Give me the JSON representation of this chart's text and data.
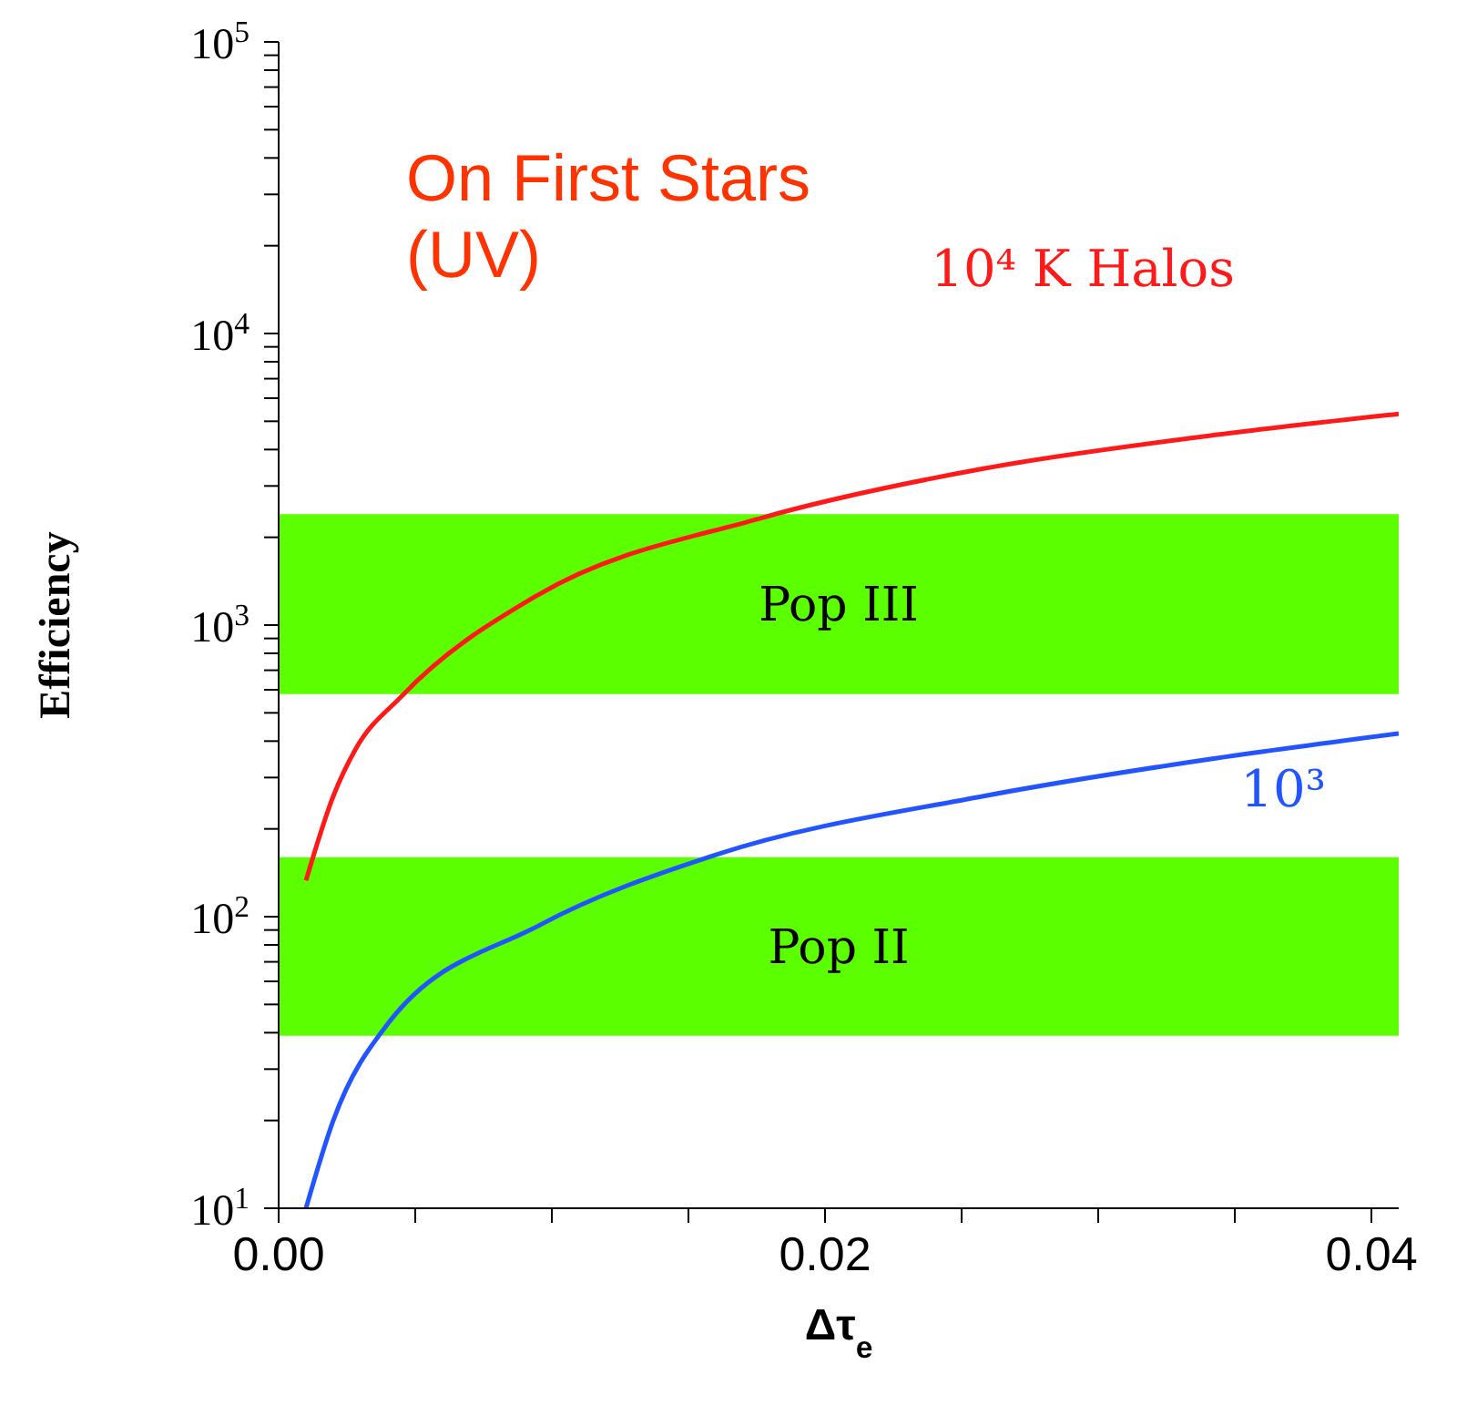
{
  "chart_data": {
    "type": "line",
    "xlabel": "Δτ$_{e}$",
    "ylabel": "Efficiency",
    "log": "y",
    "marker": "none",
    "line_style": "solid",
    "xlim": [
      0,
      0.041
    ],
    "xticks": [
      {
        "value": 0,
        "label": "0.00"
      },
      {
        "value": 0.005,
        "label": null
      },
      {
        "value": 0.01,
        "label": null
      },
      {
        "value": 0.015,
        "label": null
      },
      {
        "value": 0.02,
        "label": "0.02"
      },
      {
        "value": 0.025,
        "label": null
      },
      {
        "value": 0.03,
        "label": null
      },
      {
        "value": 0.035,
        "label": null
      },
      {
        "value": 0.04,
        "label": "0.04"
      }
    ],
    "ylim": [
      10,
      100000
    ],
    "yticks": [
      {
        "value": 10,
        "label": "10$^{1}$"
      },
      {
        "value": 20,
        "label": null
      },
      {
        "value": 30,
        "label": null
      },
      {
        "value": 40,
        "label": null
      },
      {
        "value": 50,
        "label": null
      },
      {
        "value": 60,
        "label": null
      },
      {
        "value": 70,
        "label": null
      },
      {
        "value": 80,
        "label": null
      },
      {
        "value": 90,
        "label": null
      },
      {
        "value": 100,
        "label": "10$^{2}$"
      },
      {
        "value": 200,
        "label": null
      },
      {
        "value": 300,
        "label": null
      },
      {
        "value": 400,
        "label": null
      },
      {
        "value": 500,
        "label": null
      },
      {
        "value": 600,
        "label": null
      },
      {
        "value": 700,
        "label": null
      },
      {
        "value": 800,
        "label": null
      },
      {
        "value": 900,
        "label": null
      },
      {
        "value": 1000,
        "label": "10$^{3}$"
      },
      {
        "value": 2000,
        "label": null
      },
      {
        "value": 3000,
        "label": null
      },
      {
        "value": 4000,
        "label": null
      },
      {
        "value": 5000,
        "label": null
      },
      {
        "value": 6000,
        "label": null
      },
      {
        "value": 7000,
        "label": null
      },
      {
        "value": 8000,
        "label": null
      },
      {
        "value": 9000,
        "label": null
      },
      {
        "value": 10000,
        "label": "10$^{4}$"
      },
      {
        "value": 20000,
        "label": null
      },
      {
        "value": 30000,
        "label": null
      },
      {
        "value": 40000,
        "label": null
      },
      {
        "value": 50000,
        "label": null
      },
      {
        "value": 60000,
        "label": null
      },
      {
        "value": 70000,
        "label": null
      },
      {
        "value": 80000,
        "label": null
      },
      {
        "value": 90000,
        "label": null
      },
      {
        "value": 100000,
        "label": "10$^{5}$"
      }
    ],
    "series": [
      {
        "name": "10⁴ K Halos",
        "color": "#ff1a1a",
        "x": [
          0.001,
          0.002,
          0.0028,
          0.0045,
          0.0095,
          0.0176,
          0.0258,
          0.034,
          0.041
        ],
        "values": [
          133,
          259,
          373,
          570,
          1270,
          2320,
          3440,
          4450,
          5300
        ]
      },
      {
        "name": "10³",
        "color": "#2255ff",
        "x": [
          0.001,
          0.002,
          0.004,
          0.0095,
          0.016,
          0.0258,
          0.034,
          0.041
        ],
        "values": [
          10,
          20,
          43,
          93,
          163,
          259,
          346,
          425
        ]
      }
    ],
    "bands": [
      {
        "axis": "y",
        "from": 580,
        "to": 2400,
        "label": "Pop III",
        "color": "#5cff00"
      },
      {
        "axis": "y",
        "from": 39,
        "to": 160,
        "label": "Pop II",
        "color": "#5cff00"
      }
    ],
    "annotations": [
      "On First Stars\n(UV)"
    ]
  }
}
